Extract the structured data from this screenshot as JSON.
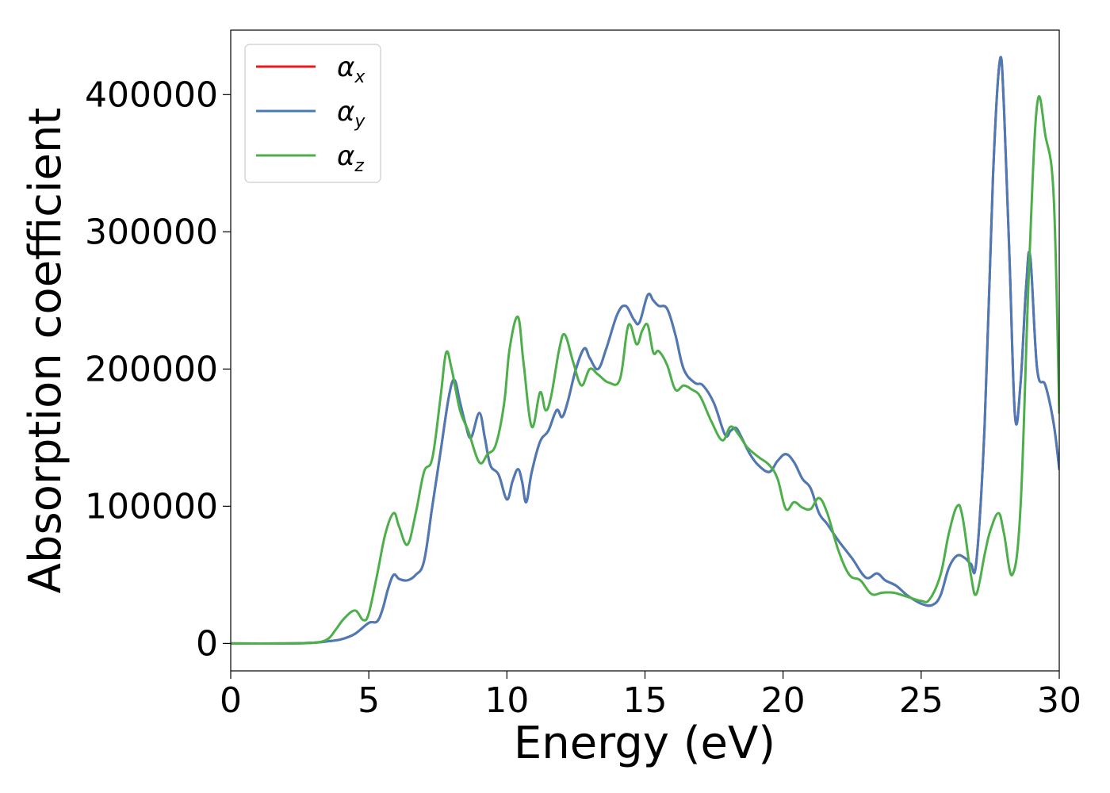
{
  "chart_data": {
    "type": "line",
    "title": "",
    "xlabel": "Energy (eV)",
    "ylabel": "Absorption coefficient",
    "xlim": [
      0,
      30
    ],
    "ylim": [
      -20000,
      447000
    ],
    "xticks": [
      0,
      5,
      10,
      15,
      20,
      25,
      30
    ],
    "yticks": [
      0,
      100000,
      200000,
      300000,
      400000
    ],
    "grid": false,
    "legend": "upper-left",
    "series": [
      {
        "name": "α",
        "subscript": "x",
        "color": "#e41a1c",
        "x": [
          0,
          2,
          3,
          3.5,
          4,
          4.5,
          5,
          5.3,
          5.5,
          5.7,
          5.9,
          6.1,
          6.4,
          6.7,
          7,
          7.3,
          7.6,
          7.9,
          8.1,
          8.3,
          8.5,
          8.7,
          9.0,
          9.2,
          9.4,
          9.7,
          10.0,
          10.2,
          10.4,
          10.55,
          10.7,
          10.9,
          11.2,
          11.5,
          11.8,
          12.0,
          12.2,
          12.5,
          12.8,
          13.0,
          13.3,
          13.6,
          14.0,
          14.3,
          14.6,
          14.8,
          15.1,
          15.3,
          15.5,
          15.8,
          16.1,
          16.4,
          16.8,
          17.1,
          17.5,
          17.9,
          18.1,
          18.3,
          18.5,
          18.8,
          19.1,
          19.5,
          19.8,
          20.1,
          20.4,
          20.7,
          21.0,
          21.3,
          21.6,
          22.0,
          22.5,
          23.0,
          23.4,
          23.7,
          24.1,
          24.5,
          25.0,
          25.4,
          25.7,
          26.0,
          26.3,
          26.6,
          26.8,
          27.0,
          27.3,
          27.6,
          27.85,
          28.0,
          28.2,
          28.4,
          28.6,
          28.8,
          28.95,
          29.2,
          29.5,
          29.8,
          30.0
        ],
        "y": [
          0,
          0,
          500,
          1500,
          3000,
          7000,
          15000,
          16000,
          25000,
          40000,
          50000,
          47000,
          46000,
          50000,
          60000,
          100000,
          140000,
          180000,
          192000,
          176000,
          160000,
          150000,
          168000,
          150000,
          130000,
          123000,
          105000,
          118000,
          127000,
          118000,
          103000,
          125000,
          147000,
          155000,
          170000,
          165000,
          176000,
          200000,
          215000,
          208000,
          200000,
          215000,
          240000,
          246000,
          236000,
          234000,
          254000,
          250000,
          246000,
          244000,
          225000,
          200000,
          190000,
          188000,
          175000,
          152000,
          155000,
          157000,
          150000,
          138000,
          130000,
          125000,
          133000,
          138000,
          132000,
          120000,
          113000,
          95000,
          87000,
          75000,
          62000,
          48000,
          51000,
          46000,
          42000,
          35000,
          29000,
          28000,
          35000,
          55000,
          64000,
          62000,
          58000,
          60000,
          160000,
          340000,
          425000,
          390000,
          280000,
          165000,
          190000,
          260000,
          282000,
          200000,
          188000,
          160000,
          127000
        ]
      },
      {
        "name": "α",
        "subscript": "y",
        "color": "#4a7bb7",
        "x": [
          0,
          2,
          3,
          3.5,
          4,
          4.5,
          5,
          5.3,
          5.5,
          5.7,
          5.9,
          6.1,
          6.4,
          6.7,
          7,
          7.3,
          7.6,
          7.9,
          8.1,
          8.3,
          8.5,
          8.7,
          9.0,
          9.2,
          9.4,
          9.7,
          10.0,
          10.2,
          10.4,
          10.55,
          10.7,
          10.9,
          11.2,
          11.5,
          11.8,
          12.0,
          12.2,
          12.5,
          12.8,
          13.0,
          13.3,
          13.6,
          14.0,
          14.3,
          14.6,
          14.8,
          15.1,
          15.3,
          15.5,
          15.8,
          16.1,
          16.4,
          16.8,
          17.1,
          17.5,
          17.9,
          18.1,
          18.3,
          18.5,
          18.8,
          19.1,
          19.5,
          19.8,
          20.1,
          20.4,
          20.7,
          21.0,
          21.3,
          21.6,
          22.0,
          22.5,
          23.0,
          23.4,
          23.7,
          24.1,
          24.5,
          25.0,
          25.4,
          25.7,
          26.0,
          26.3,
          26.6,
          26.8,
          27.0,
          27.3,
          27.6,
          27.85,
          28.0,
          28.2,
          28.4,
          28.6,
          28.8,
          28.95,
          29.2,
          29.5,
          29.8,
          30.0
        ],
        "y": [
          0,
          0,
          500,
          1500,
          3000,
          7000,
          15000,
          16000,
          25000,
          40000,
          50000,
          47000,
          46000,
          50000,
          60000,
          100000,
          140000,
          180000,
          192000,
          176000,
          160000,
          150000,
          168000,
          150000,
          130000,
          123000,
          105000,
          118000,
          127000,
          118000,
          103000,
          125000,
          147000,
          155000,
          170000,
          165000,
          176000,
          200000,
          215000,
          208000,
          200000,
          215000,
          240000,
          246000,
          236000,
          234000,
          254000,
          250000,
          246000,
          244000,
          225000,
          200000,
          190000,
          188000,
          175000,
          152000,
          155000,
          157000,
          150000,
          138000,
          130000,
          125000,
          133000,
          138000,
          132000,
          120000,
          113000,
          95000,
          87000,
          75000,
          62000,
          48000,
          51000,
          46000,
          42000,
          35000,
          29000,
          28000,
          35000,
          55000,
          64000,
          62000,
          58000,
          60000,
          160000,
          340000,
          425000,
          390000,
          280000,
          165000,
          190000,
          260000,
          282000,
          200000,
          188000,
          160000,
          127000
        ]
      },
      {
        "name": "α",
        "subscript": "z",
        "color": "#4daf4a",
        "x": [
          0,
          2,
          3,
          3.5,
          3.8,
          4.1,
          4.5,
          4.8,
          5.0,
          5.3,
          5.6,
          5.9,
          6.1,
          6.4,
          6.7,
          7.0,
          7.3,
          7.6,
          7.8,
          8.0,
          8.3,
          8.6,
          9.0,
          9.3,
          9.6,
          9.9,
          10.1,
          10.4,
          10.6,
          10.9,
          11.2,
          11.4,
          11.6,
          11.9,
          12.1,
          12.4,
          12.7,
          13.0,
          13.3,
          13.7,
          14.1,
          14.4,
          14.7,
          14.9,
          15.1,
          15.3,
          15.5,
          15.8,
          16.1,
          16.4,
          16.7,
          17.0,
          17.4,
          17.8,
          18.1,
          18.4,
          18.7,
          19.1,
          19.5,
          19.8,
          20.1,
          20.4,
          20.7,
          21.0,
          21.3,
          21.6,
          22.0,
          22.4,
          22.8,
          23.2,
          23.6,
          24.0,
          24.5,
          25.0,
          25.3,
          25.7,
          26.0,
          26.3,
          26.5,
          26.8,
          27.0,
          27.3,
          27.5,
          27.8,
          28.0,
          28.3,
          28.6,
          28.9,
          29.2,
          29.5,
          29.8,
          30.0
        ],
        "y": [
          0,
          0,
          500,
          3000,
          10000,
          18000,
          24000,
          17000,
          22000,
          50000,
          80000,
          95000,
          85000,
          72000,
          95000,
          125000,
          135000,
          180000,
          212000,
          200000,
          170000,
          155000,
          132000,
          138000,
          145000,
          175000,
          215000,
          238000,
          205000,
          158000,
          183000,
          170000,
          180000,
          215000,
          225000,
          205000,
          188000,
          200000,
          196000,
          190000,
          193000,
          232000,
          218000,
          228000,
          232000,
          212000,
          213000,
          203000,
          185000,
          188000,
          185000,
          180000,
          162000,
          148000,
          158000,
          152000,
          143000,
          136000,
          130000,
          120000,
          98000,
          103000,
          99000,
          98000,
          106000,
          95000,
          68000,
          50000,
          46000,
          36000,
          37000,
          37000,
          34000,
          31000,
          32000,
          50000,
          80000,
          100000,
          92000,
          50000,
          36000,
          65000,
          82000,
          95000,
          80000,
          50000,
          100000,
          270000,
          393000,
          370000,
          325000,
          168000
        ]
      }
    ]
  }
}
